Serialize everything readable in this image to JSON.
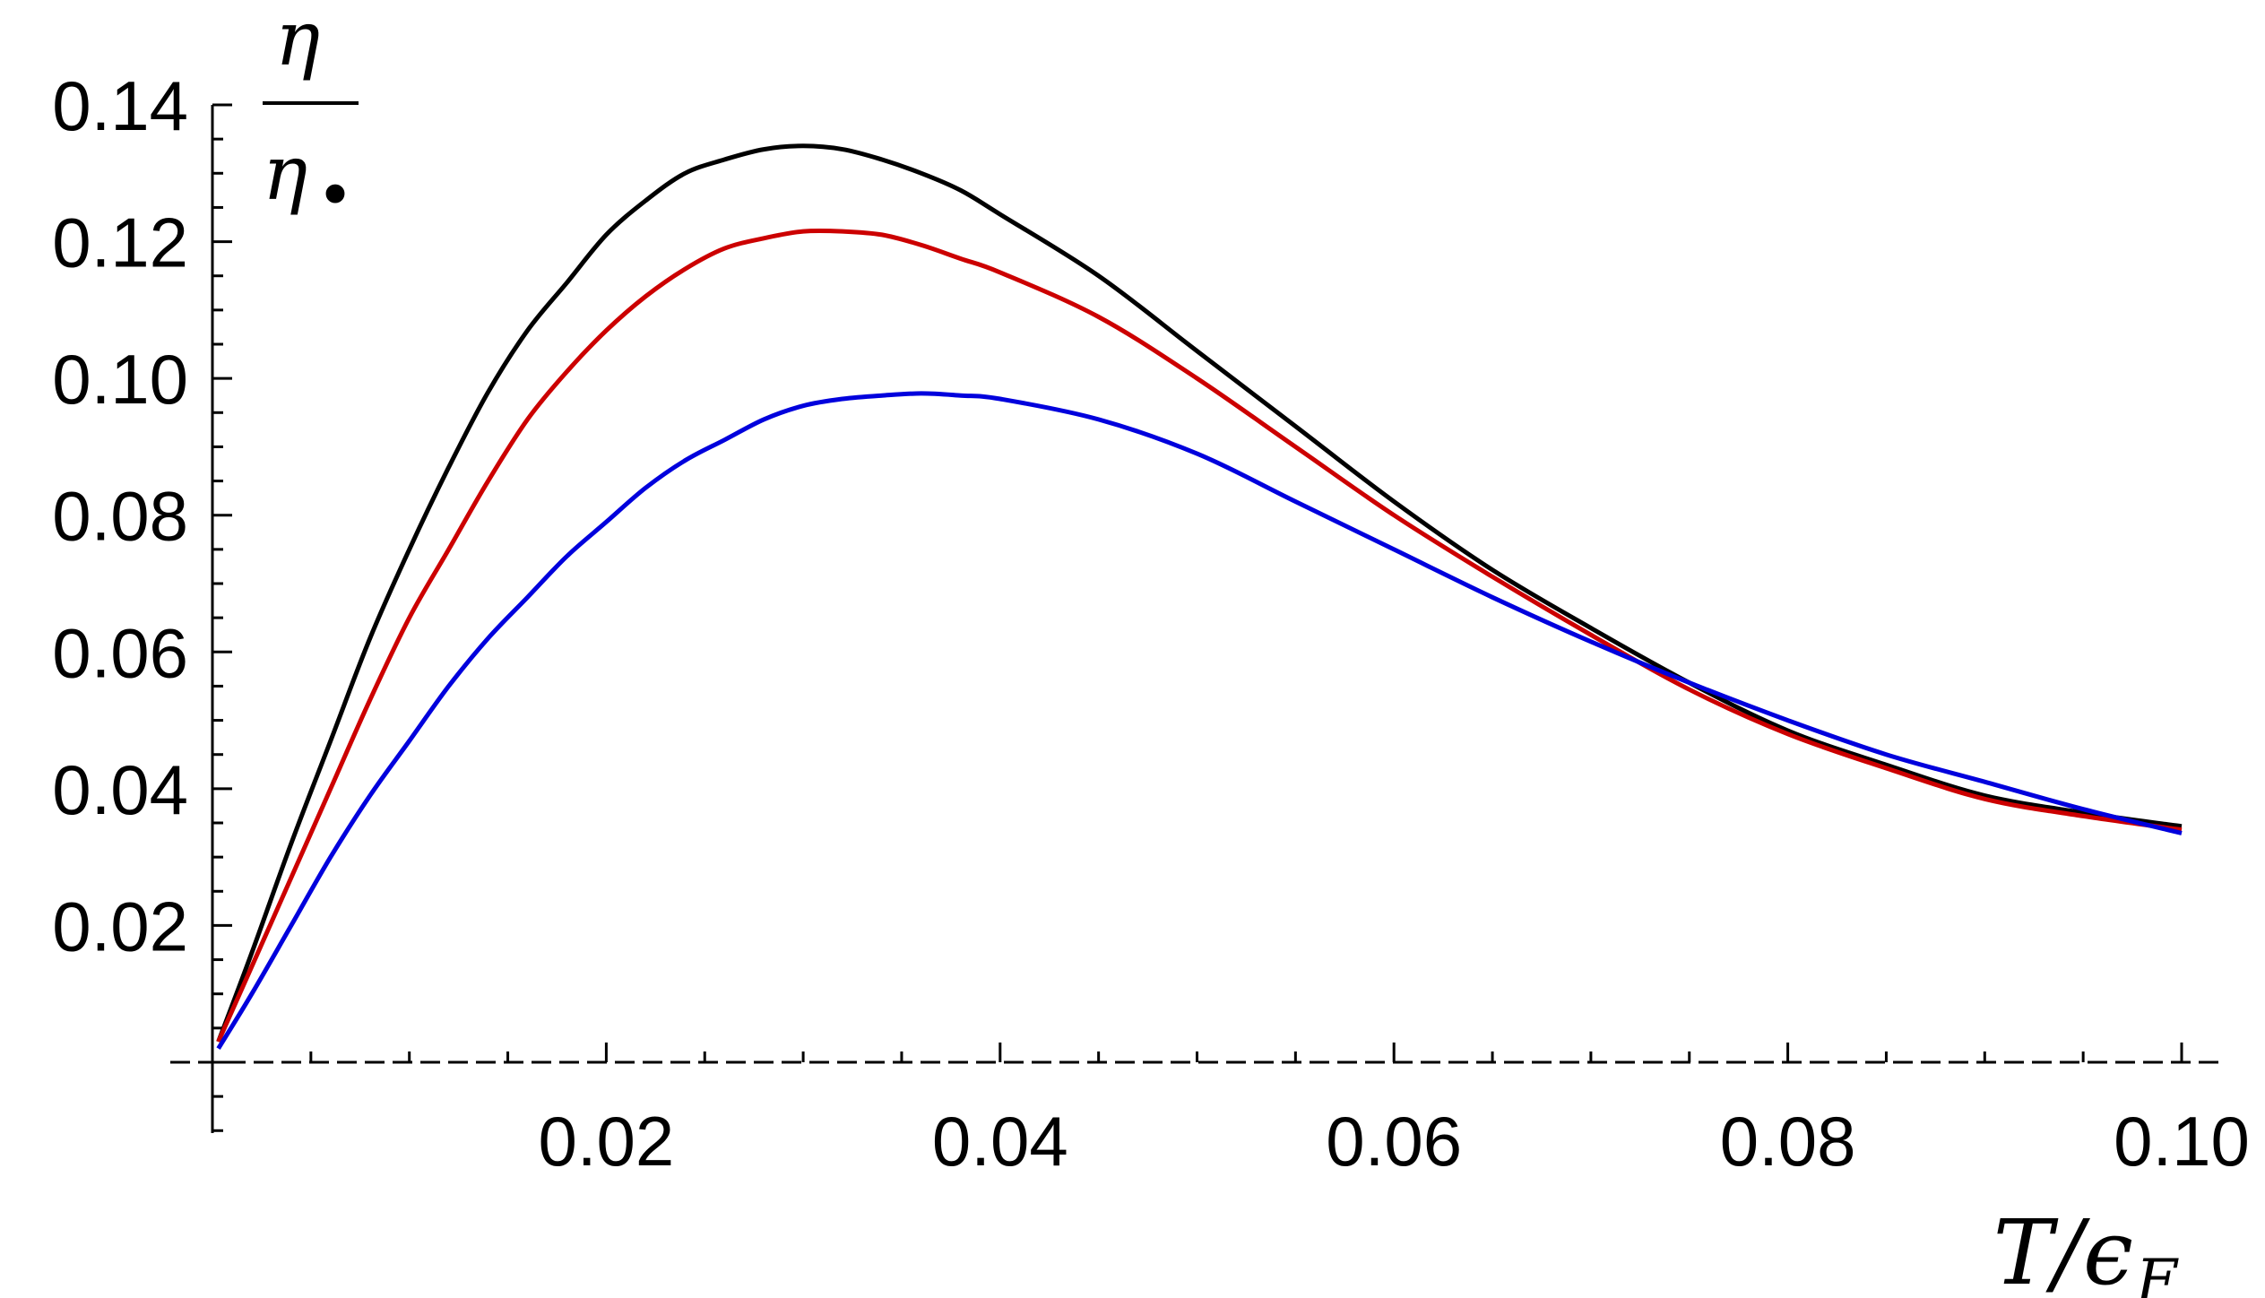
{
  "chart_data": {
    "type": "line",
    "title": "",
    "xlabel": {
      "main": "T/ϵ",
      "sub": "F"
    },
    "ylabel": {
      "numerator": "η",
      "denominator": "η",
      "denominator_mark": "•"
    },
    "xlim": [
      0,
      0.1
    ],
    "ylim": [
      -0.01,
      0.14
    ],
    "grid": false,
    "legend": "none",
    "x_ticks": [
      "0.02",
      "0.04",
      "0.06",
      "0.08",
      "0.10"
    ],
    "y_ticks": [
      "0.02",
      "0.04",
      "0.06",
      "0.08",
      "0.10",
      "0.12",
      "0.14"
    ],
    "series": [
      {
        "color": "#000000",
        "x": [
          0.0003,
          0.002,
          0.004,
          0.006,
          0.008,
          0.01,
          0.012,
          0.014,
          0.016,
          0.018,
          0.02,
          0.022,
          0.024,
          0.026,
          0.028,
          0.03,
          0.032,
          0.034,
          0.036,
          0.038,
          0.04,
          0.045,
          0.05,
          0.055,
          0.06,
          0.065,
          0.07,
          0.075,
          0.08,
          0.085,
          0.09,
          0.095,
          0.1
        ],
        "y": [
          0.003,
          0.016,
          0.032,
          0.047,
          0.062,
          0.075,
          0.087,
          0.098,
          0.107,
          0.114,
          0.121,
          0.126,
          0.13,
          0.132,
          0.1335,
          0.134,
          0.1335,
          0.132,
          0.13,
          0.1275,
          0.124,
          0.115,
          0.104,
          0.093,
          0.082,
          0.072,
          0.0635,
          0.0555,
          0.0485,
          0.0435,
          0.039,
          0.0365,
          0.0345
        ]
      },
      {
        "color": "#cc0000",
        "x": [
          0.0003,
          0.002,
          0.004,
          0.006,
          0.008,
          0.01,
          0.012,
          0.014,
          0.016,
          0.018,
          0.02,
          0.022,
          0.024,
          0.026,
          0.028,
          0.03,
          0.032,
          0.034,
          0.036,
          0.038,
          0.04,
          0.045,
          0.05,
          0.055,
          0.06,
          0.065,
          0.07,
          0.075,
          0.08,
          0.085,
          0.09,
          0.095,
          0.1
        ],
        "y": [
          0.003,
          0.014,
          0.027,
          0.04,
          0.053,
          0.065,
          0.075,
          0.085,
          0.094,
          0.101,
          0.107,
          0.112,
          0.116,
          0.119,
          0.1205,
          0.1215,
          0.1215,
          0.121,
          0.1195,
          0.1175,
          0.1155,
          0.109,
          0.1,
          0.09,
          0.08,
          0.071,
          0.0625,
          0.0545,
          0.048,
          0.043,
          0.0385,
          0.036,
          0.034
        ]
      },
      {
        "color": "#0000dd",
        "x": [
          0.0003,
          0.002,
          0.004,
          0.006,
          0.008,
          0.01,
          0.012,
          0.014,
          0.016,
          0.018,
          0.02,
          0.022,
          0.024,
          0.026,
          0.028,
          0.03,
          0.032,
          0.034,
          0.036,
          0.038,
          0.04,
          0.045,
          0.05,
          0.055,
          0.06,
          0.065,
          0.07,
          0.075,
          0.08,
          0.085,
          0.09,
          0.095,
          0.1
        ],
        "y": [
          0.002,
          0.01,
          0.02,
          0.03,
          0.039,
          0.047,
          0.055,
          0.062,
          0.068,
          0.074,
          0.079,
          0.084,
          0.088,
          0.091,
          0.094,
          0.096,
          0.097,
          0.0975,
          0.0978,
          0.0975,
          0.097,
          0.094,
          0.089,
          0.082,
          0.075,
          0.068,
          0.0615,
          0.0555,
          0.05,
          0.045,
          0.041,
          0.037,
          0.0335
        ]
      }
    ]
  }
}
